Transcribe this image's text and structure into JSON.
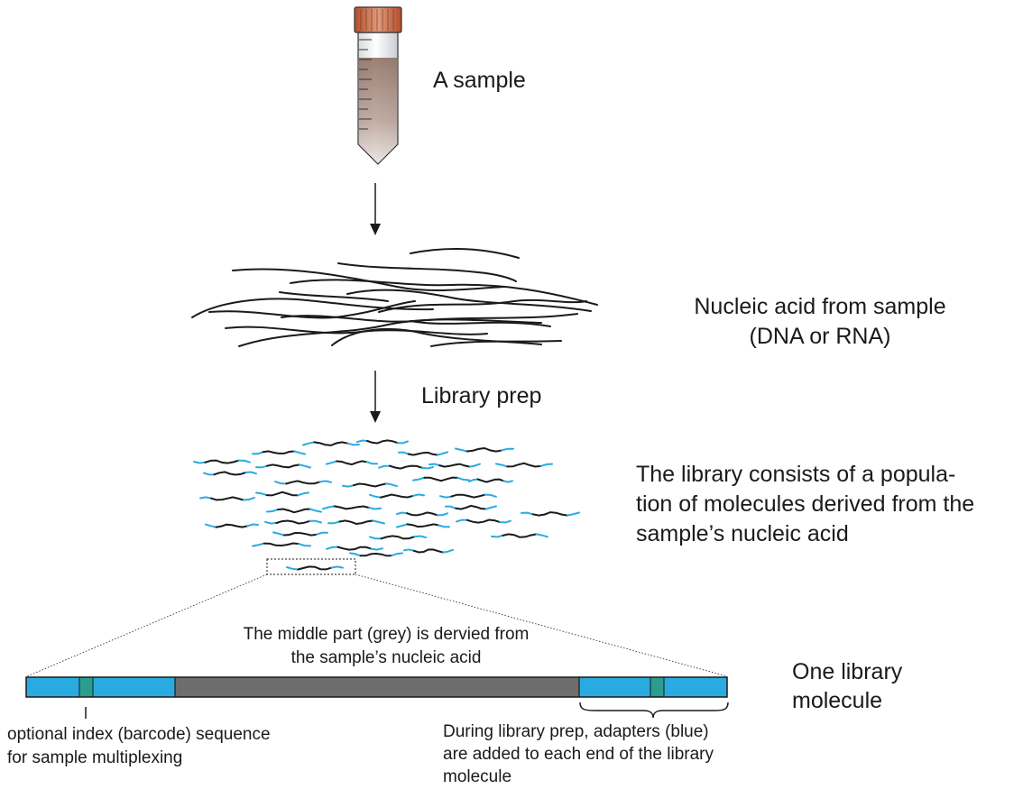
{
  "labels": {
    "sample": "A sample",
    "nucleic_line1": "Nucleic acid from sample",
    "nucleic_line2": "(DNA or RNA)",
    "library_prep": "Library prep",
    "library_line1": "The library consists of a popula-",
    "library_line2": "tion of molecules derived from the",
    "library_line3": "sample’s nucleic acid",
    "middle_line1": "The middle part (grey) is dervied from",
    "middle_line2": "the sample’s nucleic acid",
    "molecule_line1": "One library",
    "molecule_line2": "molecule",
    "index_line1": "optional index (barcode) sequence",
    "index_line2": "for sample multiplexing",
    "adapter_line1": "During library prep, adapters (blue)",
    "adapter_line2": "are added to each end of the library",
    "adapter_line3": "molecule"
  },
  "colors": {
    "adapter": "#29abe2",
    "insert": "#6d6d6d",
    "index": "#2a9d8f",
    "tube_cap": "#c8623e",
    "sample_liquid": "#8a6b5c",
    "strand": "#1a1a1a"
  }
}
